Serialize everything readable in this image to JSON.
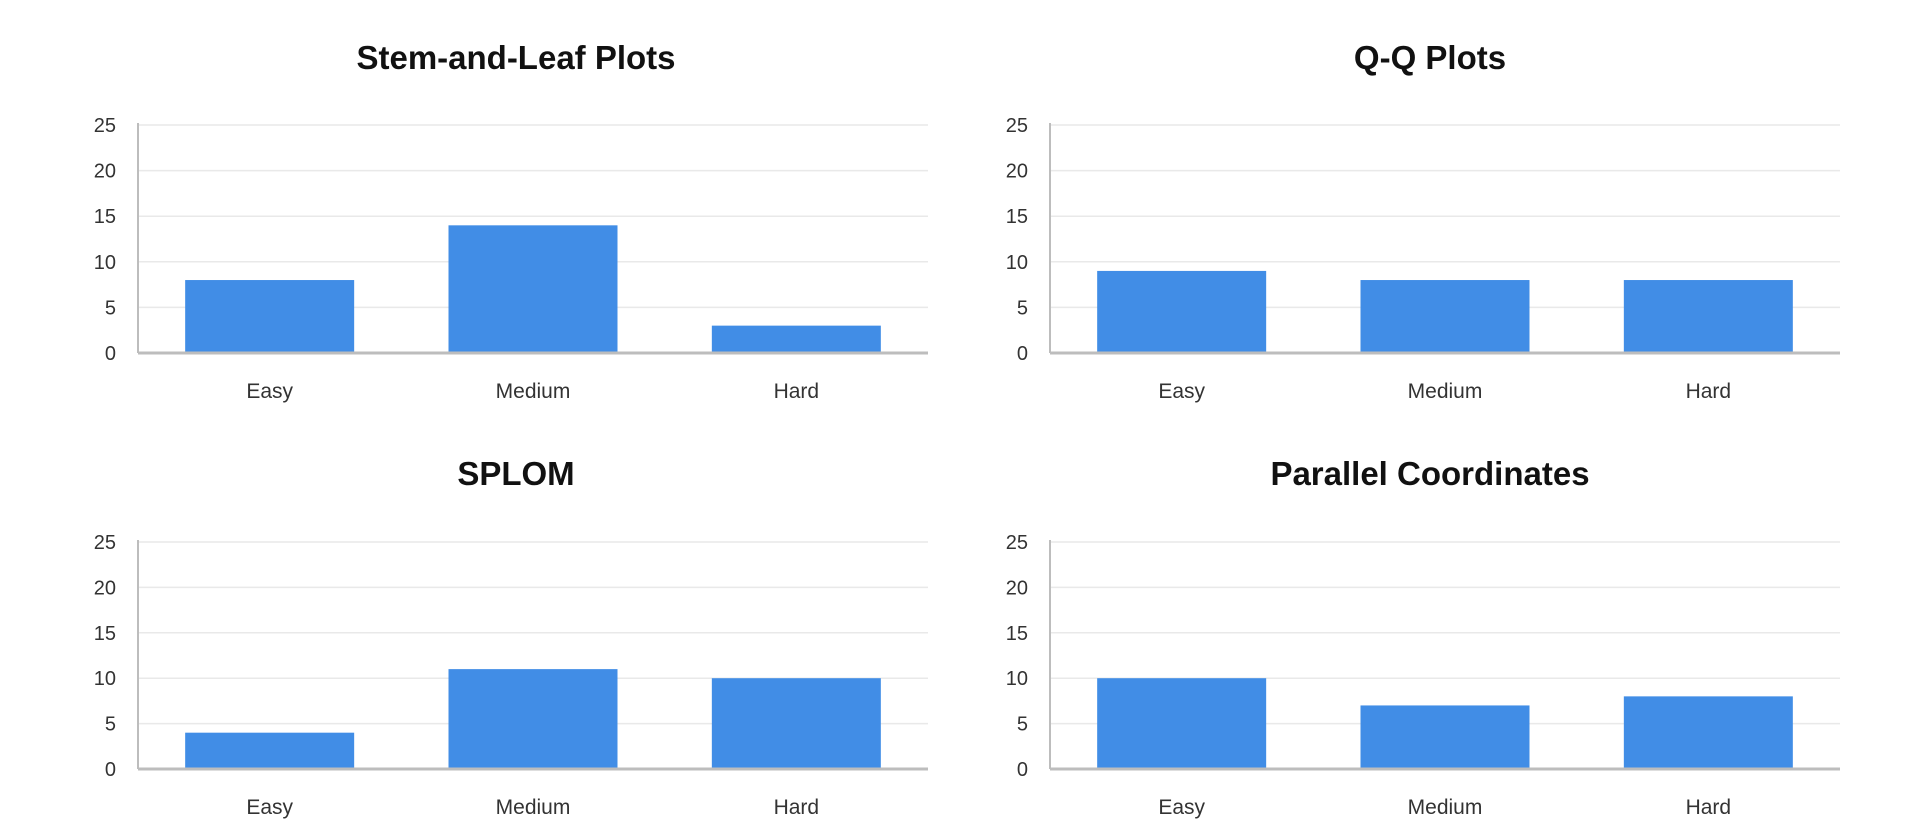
{
  "colors": {
    "bar": "#418de6",
    "grid": "#e9e9e9",
    "axis": "#bdbdbd",
    "text": "#333333",
    "title": "#111111"
  },
  "chart_data": [
    {
      "type": "bar",
      "title": "Stem-and-Leaf Plots",
      "categories": [
        "Easy",
        "Medium",
        "Hard"
      ],
      "values": [
        8,
        14,
        3
      ],
      "ylim": [
        0,
        25
      ],
      "yticks": [
        0,
        5,
        10,
        15,
        20,
        25
      ],
      "xlabel": "",
      "ylabel": "",
      "grid": true
    },
    {
      "type": "bar",
      "title": "Q-Q Plots",
      "categories": [
        "Easy",
        "Medium",
        "Hard"
      ],
      "values": [
        9,
        8,
        8
      ],
      "ylim": [
        0,
        25
      ],
      "yticks": [
        0,
        5,
        10,
        15,
        20,
        25
      ],
      "xlabel": "",
      "ylabel": "",
      "grid": true
    },
    {
      "type": "bar",
      "title": "SPLOM",
      "categories": [
        "Easy",
        "Medium",
        "Hard"
      ],
      "values": [
        4,
        11,
        10
      ],
      "ylim": [
        0,
        25
      ],
      "yticks": [
        0,
        5,
        10,
        15,
        20,
        25
      ],
      "xlabel": "",
      "ylabel": "",
      "grid": true
    },
    {
      "type": "bar",
      "title": "Parallel Coordinates",
      "categories": [
        "Easy",
        "Medium",
        "Hard"
      ],
      "values": [
        10,
        7,
        8
      ],
      "ylim": [
        0,
        25
      ],
      "yticks": [
        0,
        5,
        10,
        15,
        20,
        25
      ],
      "xlabel": "",
      "ylabel": "",
      "grid": true
    }
  ]
}
